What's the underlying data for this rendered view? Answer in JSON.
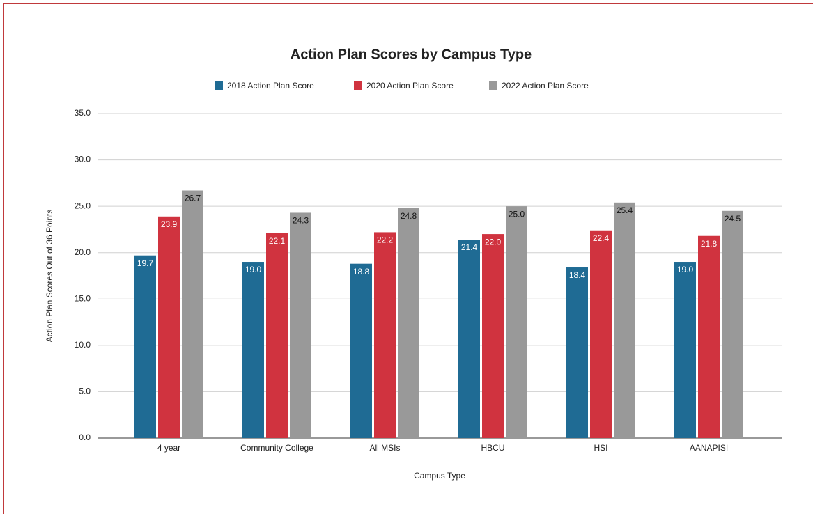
{
  "chart_data": {
    "type": "bar",
    "title": "Action Plan Scores by Campus Type",
    "x_label": "Campus Type",
    "y_label": "Action Plan Scores Out of 36 Points",
    "categories": [
      "4 year",
      "Community College",
      "All MSIs",
      "HBCU",
      "HSI",
      "AANAPISI"
    ],
    "series": [
      {
        "name": "2018 Action Plan Score",
        "color": "#1f6b94",
        "values": [
          19.7,
          19.0,
          18.8,
          21.4,
          18.4,
          19.0
        ],
        "value_labels": [
          "19.7",
          "19.0",
          "18.8",
          "21.4",
          "18.4",
          "19.0"
        ]
      },
      {
        "name": "2020 Action Plan Score",
        "color": "#d0333f",
        "values": [
          23.9,
          22.1,
          22.2,
          22.0,
          22.4,
          21.8
        ],
        "value_labels": [
          "23.9",
          "22.1",
          "22.2",
          "22.0",
          "22.4",
          "21.8"
        ]
      },
      {
        "name": "2022 Action Plan Score",
        "color": "#999999",
        "values": [
          26.7,
          24.3,
          24.8,
          25.0,
          25.4,
          24.5
        ],
        "value_labels": [
          "26.7",
          "24.3",
          "24.8",
          "25.0",
          "25.4",
          "24.5"
        ]
      }
    ],
    "ylim": [
      0,
      35
    ],
    "yticks": [
      {
        "value": 0,
        "label": "0.0"
      },
      {
        "value": 5,
        "label": "5.0"
      },
      {
        "value": 10,
        "label": "10.0"
      },
      {
        "value": 15,
        "label": "15.0"
      },
      {
        "value": 20,
        "label": "20.0"
      },
      {
        "value": 25,
        "label": "25.0"
      },
      {
        "value": 30,
        "label": "30.0"
      },
      {
        "value": 35,
        "label": "35.0"
      }
    ],
    "grid": true,
    "legend": "top"
  }
}
